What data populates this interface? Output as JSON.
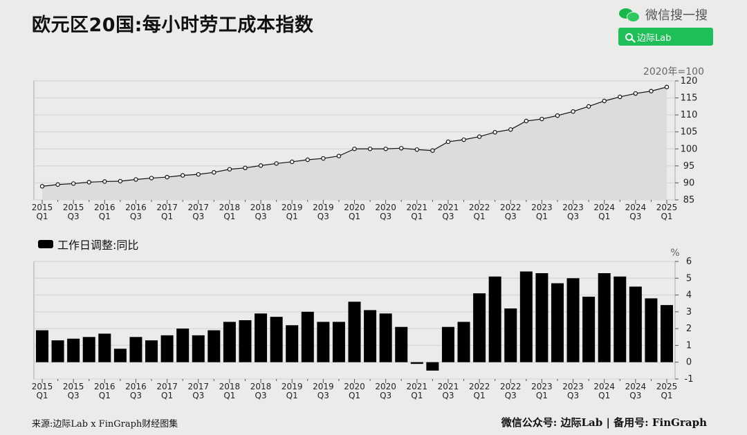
{
  "header": {
    "title": "欧元区20国:每小时劳工成本指数",
    "wechat_label": "微信搜一搜",
    "search_label": "边际Lab"
  },
  "footer": {
    "source": "来源:边际Lab x FinGraph财经图集",
    "credit": "微信公众号: 边际Lab  |  备用号: FinGraph"
  },
  "colors": {
    "accent": "#1fbf57",
    "bar": "#000000",
    "area": "#dcdcdc"
  },
  "chart_data": [
    {
      "type": "area",
      "unit_label": "2020年=100",
      "ylim": [
        85,
        120
      ],
      "yticks": [
        85,
        90,
        95,
        100,
        105,
        110,
        115,
        120
      ],
      "x_tick_labels": [
        [
          "2015",
          "Q1"
        ],
        [
          "2015",
          "Q3"
        ],
        [
          "2016",
          "Q1"
        ],
        [
          "2016",
          "Q3"
        ],
        [
          "2017",
          "Q1"
        ],
        [
          "2017",
          "Q3"
        ],
        [
          "2018",
          "Q1"
        ],
        [
          "2018",
          "Q3"
        ],
        [
          "2019",
          "Q1"
        ],
        [
          "2019",
          "Q3"
        ],
        [
          "2020",
          "Q1"
        ],
        [
          "2020",
          "Q3"
        ],
        [
          "2021",
          "Q1"
        ],
        [
          "2021",
          "Q3"
        ],
        [
          "2022",
          "Q1"
        ],
        [
          "2022",
          "Q3"
        ],
        [
          "2023",
          "Q1"
        ],
        [
          "2023",
          "Q3"
        ],
        [
          "2024",
          "Q1"
        ],
        [
          "2024",
          "Q3"
        ],
        [
          "2025",
          "Q1"
        ]
      ],
      "values": [
        89.0,
        89.5,
        89.8,
        90.2,
        90.4,
        90.5,
        91.0,
        91.4,
        91.7,
        92.2,
        92.5,
        93.1,
        94.0,
        94.4,
        95.1,
        95.7,
        96.2,
        96.8,
        97.2,
        97.9,
        100.0,
        100.0,
        100.0,
        100.2,
        99.8,
        99.5,
        102.1,
        102.7,
        103.6,
        104.9,
        105.7,
        108.2,
        108.8,
        109.8,
        111.0,
        112.5,
        114.1,
        115.3,
        116.3,
        117.0,
        118.2
      ],
      "grid": true
    },
    {
      "type": "bar",
      "legend": "工作日调整:同比",
      "unit_label": "%",
      "ylim": [
        -1,
        6
      ],
      "yticks": [
        -1,
        0,
        1,
        2,
        3,
        4,
        5,
        6
      ],
      "x_tick_labels": [
        [
          "2015",
          "Q1"
        ],
        [
          "2015",
          "Q3"
        ],
        [
          "2016",
          "Q1"
        ],
        [
          "2016",
          "Q3"
        ],
        [
          "2017",
          "Q1"
        ],
        [
          "2017",
          "Q3"
        ],
        [
          "2018",
          "Q1"
        ],
        [
          "2018",
          "Q3"
        ],
        [
          "2019",
          "Q1"
        ],
        [
          "2019",
          "Q3"
        ],
        [
          "2020",
          "Q1"
        ],
        [
          "2020",
          "Q3"
        ],
        [
          "2021",
          "Q1"
        ],
        [
          "2021",
          "Q3"
        ],
        [
          "2022",
          "Q1"
        ],
        [
          "2022",
          "Q3"
        ],
        [
          "2023",
          "Q1"
        ],
        [
          "2023",
          "Q3"
        ],
        [
          "2024",
          "Q1"
        ],
        [
          "2024",
          "Q3"
        ],
        [
          "2025",
          "Q1"
        ]
      ],
      "values": [
        1.9,
        1.3,
        1.4,
        1.5,
        1.7,
        0.8,
        1.5,
        1.3,
        1.6,
        2.0,
        1.6,
        1.9,
        2.4,
        2.5,
        2.9,
        2.7,
        2.2,
        3.0,
        2.4,
        2.4,
        3.6,
        3.1,
        2.9,
        2.1,
        -0.1,
        -0.5,
        2.1,
        2.4,
        4.1,
        5.1,
        3.2,
        5.4,
        5.3,
        4.7,
        5.0,
        3.9,
        5.3,
        5.1,
        4.5,
        3.8,
        3.4
      ],
      "grid": true
    }
  ]
}
